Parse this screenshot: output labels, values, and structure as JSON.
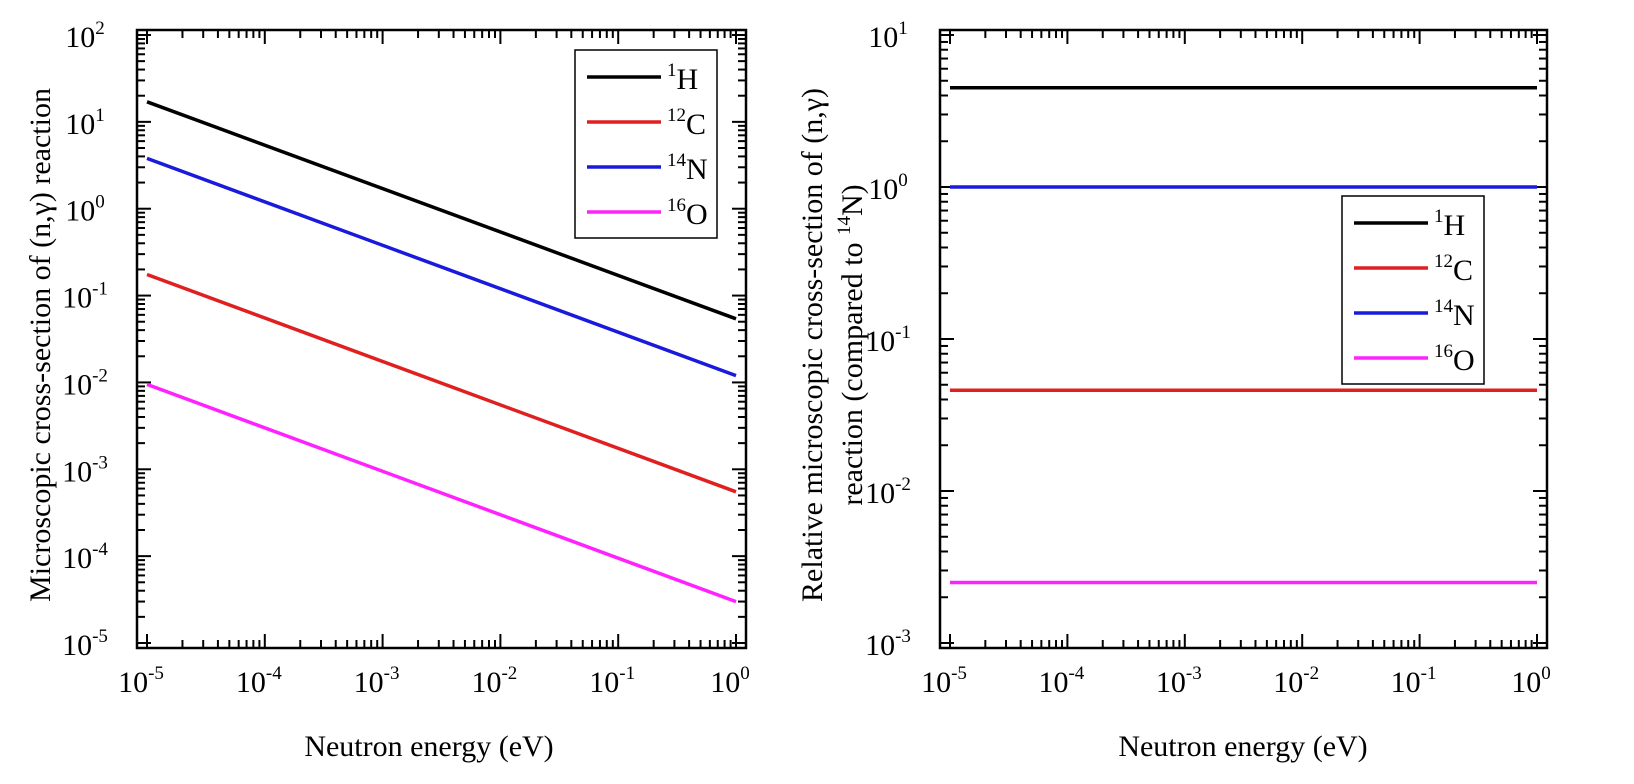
{
  "chart_data": [
    {
      "type": "line",
      "x_scale": "log",
      "y_scale": "log",
      "xlabel": "Neutron energy (eV)",
      "ylabel": "Microscopic cross-section of (n,γ) reaction",
      "xlim": [
        1e-05,
        1
      ],
      "ylim": [
        1e-05,
        100
      ],
      "x_ticks": [
        {
          "base": "10",
          "exp": "-5"
        },
        {
          "base": "10",
          "exp": "-4"
        },
        {
          "base": "10",
          "exp": "-3"
        },
        {
          "base": "10",
          "exp": "-2"
        },
        {
          "base": "10",
          "exp": "-1"
        },
        {
          "base": "10",
          "exp": "0"
        }
      ],
      "y_ticks": [
        {
          "base": "10",
          "exp": "-5"
        },
        {
          "base": "10",
          "exp": "-4"
        },
        {
          "base": "10",
          "exp": "-3"
        },
        {
          "base": "10",
          "exp": "-2"
        },
        {
          "base": "10",
          "exp": "-1"
        },
        {
          "base": "10",
          "exp": "0"
        },
        {
          "base": "10",
          "exp": "1"
        },
        {
          "base": "10",
          "exp": "2"
        }
      ],
      "legend_position": "top-right",
      "series": [
        {
          "name": "1H",
          "label_sup": "1",
          "label_main": "H",
          "color": "#000000",
          "x": [
            1e-05,
            1
          ],
          "values": [
            17,
            0.054
          ]
        },
        {
          "name": "12C",
          "label_sup": "12",
          "label_main": "C",
          "color": "#e02020",
          "x": [
            1e-05,
            1
          ],
          "values": [
            0.175,
            0.00055
          ]
        },
        {
          "name": "14N",
          "label_sup": "14",
          "label_main": "N",
          "color": "#1a1adc",
          "x": [
            1e-05,
            1
          ],
          "values": [
            3.8,
            0.012
          ]
        },
        {
          "name": "16O",
          "label_sup": "16",
          "label_main": "O",
          "color": "#ff22ff",
          "x": [
            1e-05,
            1
          ],
          "values": [
            0.0095,
            3e-05
          ]
        }
      ]
    },
    {
      "type": "line",
      "x_scale": "log",
      "y_scale": "log",
      "xlabel": "Neutron energy (eV)",
      "ylabel_line1": "Relative microscopic cross-section of (n,γ)",
      "ylabel_line2_prefix": "reaction (compared to ",
      "ylabel_line2_sup": "14",
      "ylabel_line2_suffix": "N)",
      "xlim": [
        1e-05,
        1
      ],
      "ylim": [
        0.001,
        10
      ],
      "x_ticks": [
        {
          "base": "10",
          "exp": "-5"
        },
        {
          "base": "10",
          "exp": "-4"
        },
        {
          "base": "10",
          "exp": "-3"
        },
        {
          "base": "10",
          "exp": "-2"
        },
        {
          "base": "10",
          "exp": "-1"
        },
        {
          "base": "10",
          "exp": "0"
        }
      ],
      "y_ticks": [
        {
          "base": "10",
          "exp": "-3"
        },
        {
          "base": "10",
          "exp": "-2"
        },
        {
          "base": "10",
          "exp": "-1"
        },
        {
          "base": "10",
          "exp": "0"
        },
        {
          "base": "10",
          "exp": "1"
        }
      ],
      "legend_position": "center-right",
      "series": [
        {
          "name": "1H",
          "label_sup": "1",
          "label_main": "H",
          "color": "#000000",
          "x": [
            1e-05,
            1
          ],
          "values": [
            4.5,
            4.5
          ]
        },
        {
          "name": "12C",
          "label_sup": "12",
          "label_main": "C",
          "color": "#e02020",
          "x": [
            1e-05,
            1
          ],
          "values": [
            0.046,
            0.046
          ]
        },
        {
          "name": "14N",
          "label_sup": "14",
          "label_main": "N",
          "color": "#1a1adc",
          "x": [
            1e-05,
            1
          ],
          "values": [
            1,
            1
          ]
        },
        {
          "name": "16O",
          "label_sup": "16",
          "label_main": "O",
          "color": "#ff22ff",
          "x": [
            1e-05,
            1
          ],
          "values": [
            0.0025,
            0.0025
          ]
        }
      ]
    }
  ]
}
